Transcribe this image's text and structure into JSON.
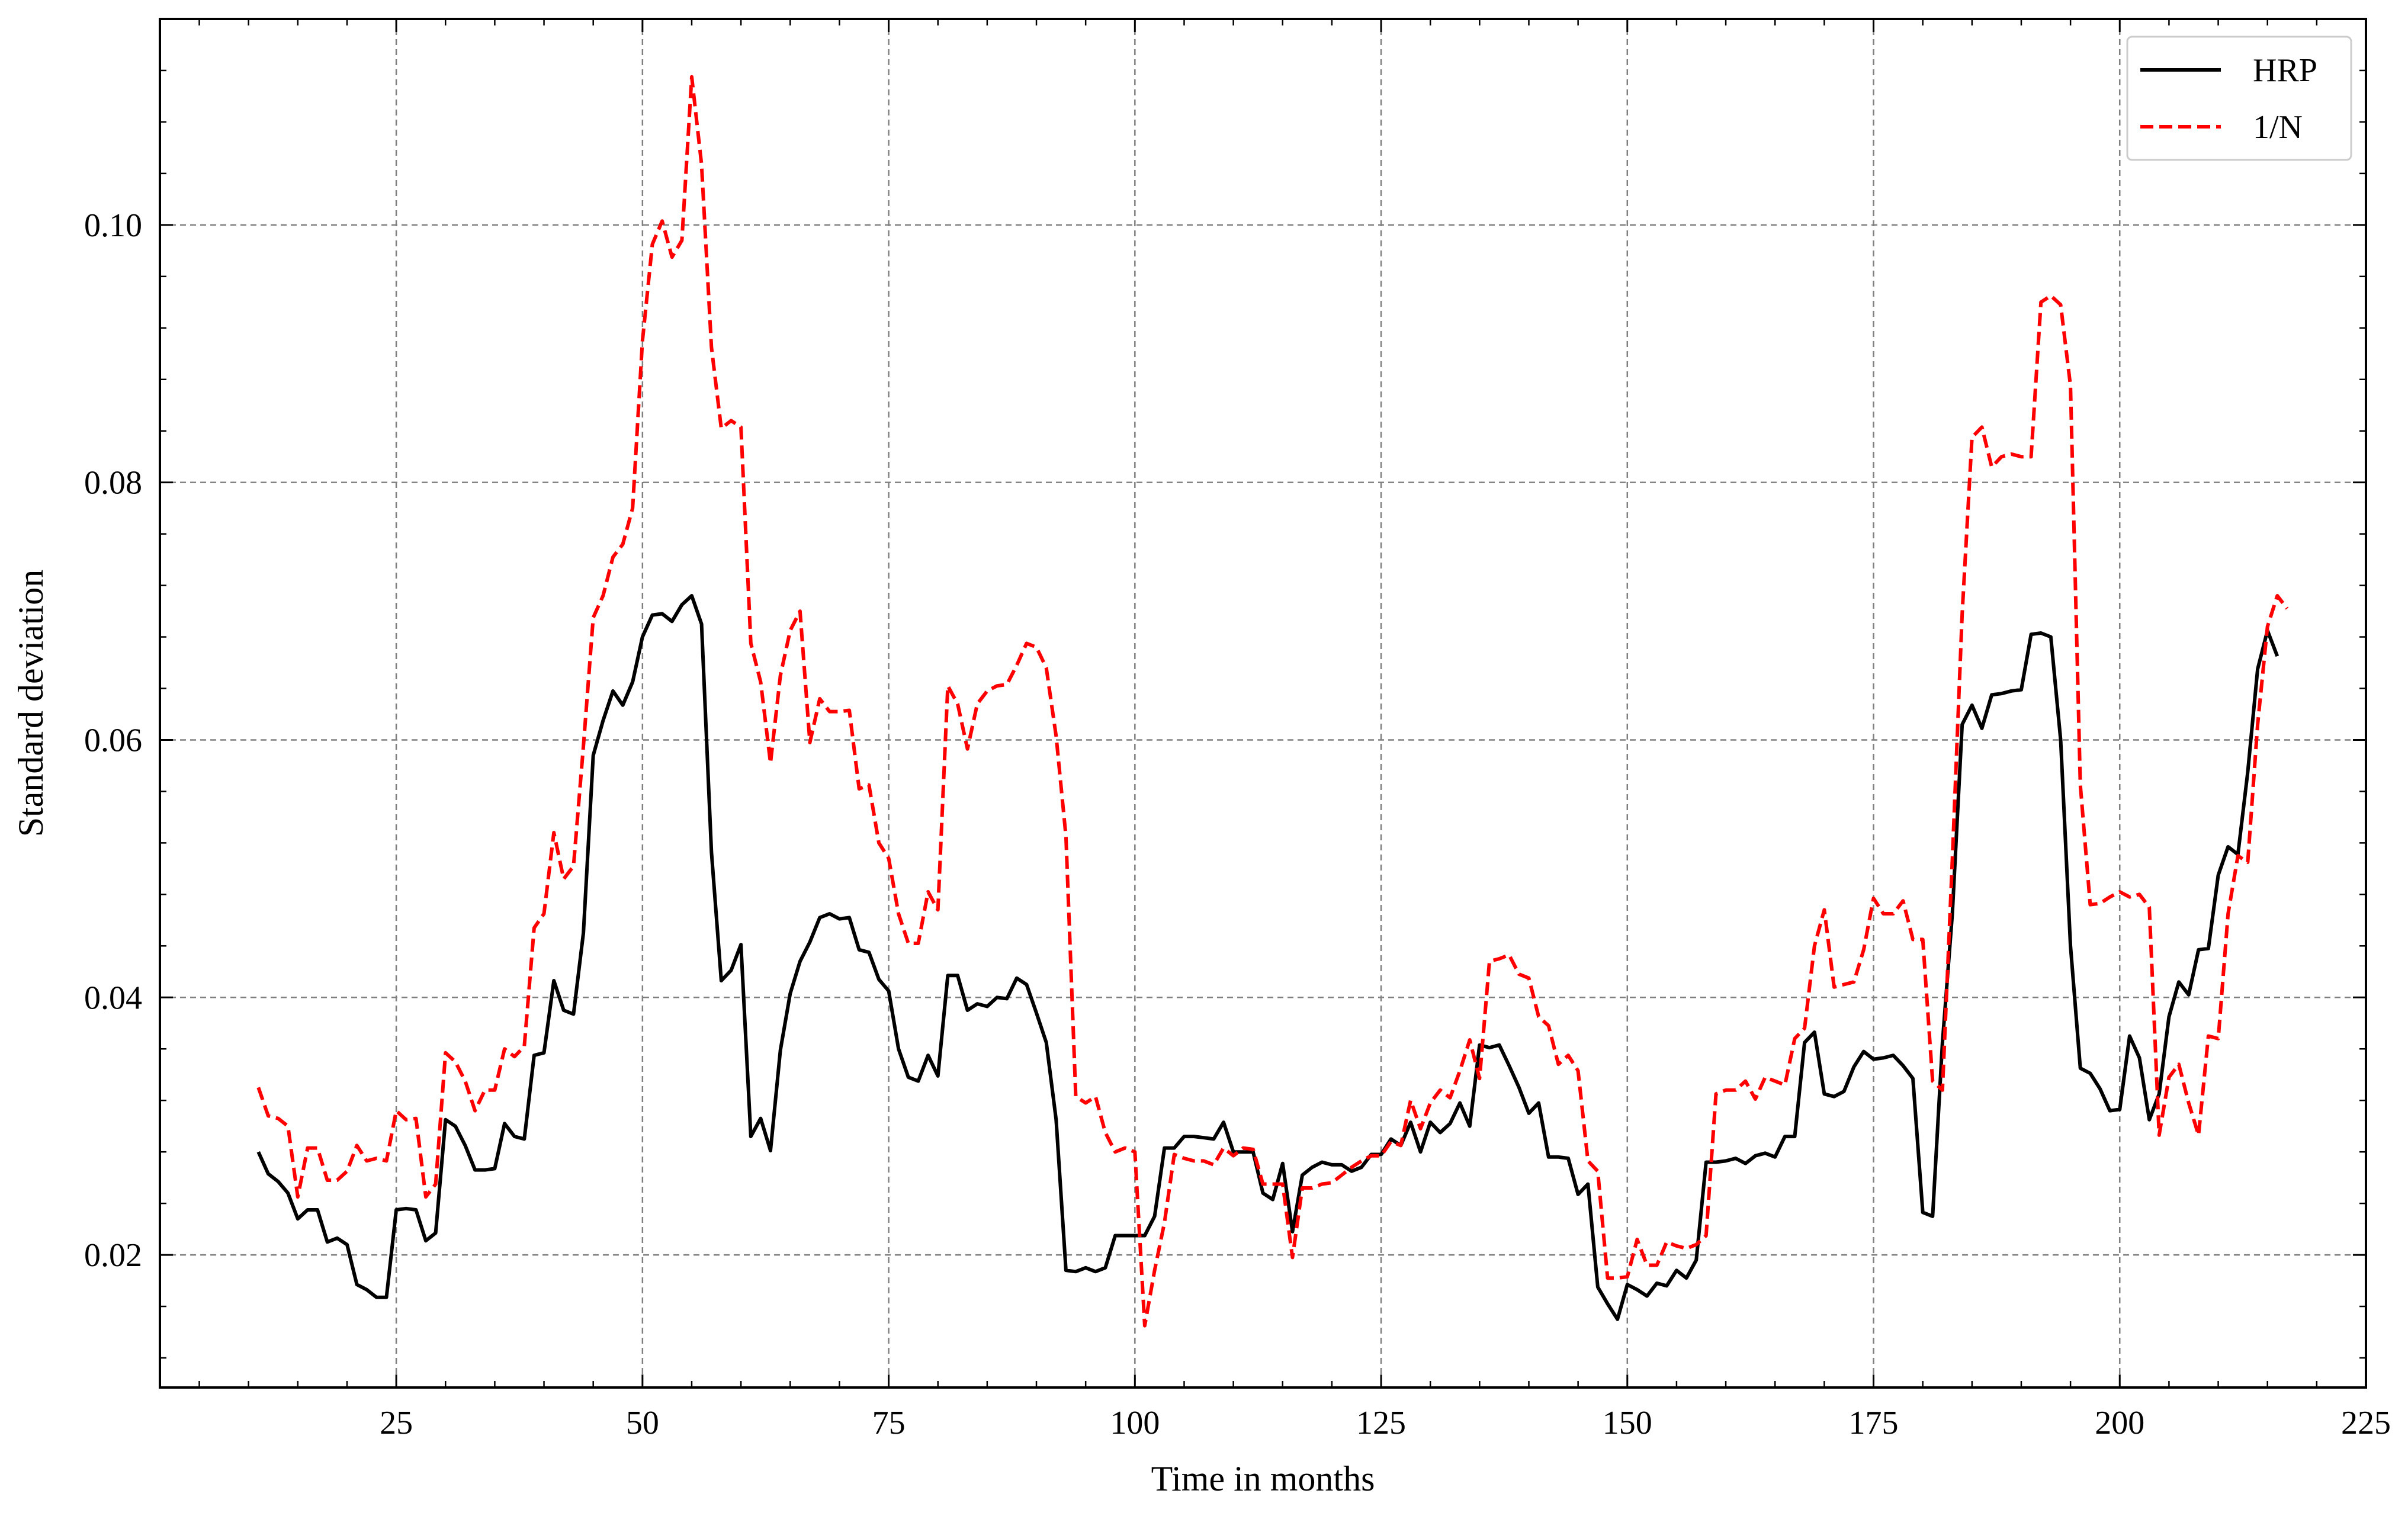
{
  "chart_data": {
    "type": "line",
    "title": "",
    "xlabel": "Time in months",
    "ylabel": "Standard deviation",
    "xlim": [
      1,
      225
    ],
    "ylim": [
      0.0097,
      0.116
    ],
    "xticks": [
      25,
      50,
      75,
      100,
      125,
      150,
      175,
      200,
      225
    ],
    "yticks": [
      0.02,
      0.04,
      0.06,
      0.08,
      0.1
    ],
    "xtick_labels": [
      "25",
      "50",
      "75",
      "100",
      "125",
      "150",
      "175",
      "200",
      "225"
    ],
    "ytick_labels": [
      "0.02",
      "0.04",
      "0.06",
      "0.08",
      "0.10"
    ],
    "grid": true,
    "legend_position": "top-right",
    "x_start": 11,
    "series": [
      {
        "name": "HRP",
        "color": "#000000",
        "style": "solid",
        "values": [
          0.028,
          0.0263,
          0.0257,
          0.0248,
          0.0228,
          0.0235,
          0.0235,
          0.021,
          0.0213,
          0.0208,
          0.0177,
          0.0173,
          0.0167,
          0.0167,
          0.0235,
          0.0236,
          0.0235,
          0.0211,
          0.0217,
          0.0305,
          0.03,
          0.0285,
          0.0266,
          0.0266,
          0.0267,
          0.0302,
          0.0292,
          0.029,
          0.0355,
          0.0357,
          0.0413,
          0.039,
          0.0387,
          0.045,
          0.0588,
          0.0615,
          0.0638,
          0.0627,
          0.0645,
          0.068,
          0.0697,
          0.0698,
          0.0692,
          0.0705,
          0.0712,
          0.069,
          0.0513,
          0.0413,
          0.0421,
          0.0441,
          0.0292,
          0.0306,
          0.0281,
          0.0359,
          0.0403,
          0.0428,
          0.0443,
          0.0462,
          0.0465,
          0.0461,
          0.0462,
          0.0437,
          0.0435,
          0.0414,
          0.0405,
          0.036,
          0.0338,
          0.0335,
          0.0355,
          0.0339,
          0.0417,
          0.0417,
          0.039,
          0.0395,
          0.0393,
          0.04,
          0.0399,
          0.0415,
          0.041,
          0.0388,
          0.0365,
          0.0305,
          0.0188,
          0.0187,
          0.019,
          0.0187,
          0.019,
          0.0215,
          0.0215,
          0.0215,
          0.0215,
          0.023,
          0.0283,
          0.0283,
          0.0292,
          0.0292,
          0.0291,
          0.029,
          0.0303,
          0.028,
          0.028,
          0.028,
          0.0248,
          0.0243,
          0.0271,
          0.0218,
          0.0262,
          0.0268,
          0.0272,
          0.027,
          0.027,
          0.0265,
          0.0268,
          0.0278,
          0.0278,
          0.029,
          0.0285,
          0.0303,
          0.028,
          0.0303,
          0.0295,
          0.0302,
          0.0318,
          0.03,
          0.0363,
          0.0361,
          0.0363,
          0.0347,
          0.033,
          0.031,
          0.0318,
          0.0276,
          0.0276,
          0.0275,
          0.0247,
          0.0255,
          0.0175,
          0.0162,
          0.015,
          0.0177,
          0.0173,
          0.0168,
          0.0178,
          0.0176,
          0.0188,
          0.0182,
          0.0196,
          0.0272,
          0.0272,
          0.0273,
          0.0275,
          0.0271,
          0.0277,
          0.0279,
          0.0276,
          0.0292,
          0.0292,
          0.0365,
          0.0373,
          0.0325,
          0.0323,
          0.0327,
          0.0346,
          0.0358,
          0.0352,
          0.0353,
          0.0355,
          0.0347,
          0.0337,
          0.0233,
          0.023,
          0.0365,
          0.0465,
          0.0612,
          0.0627,
          0.0609,
          0.0635,
          0.0636,
          0.0638,
          0.0639,
          0.0682,
          0.0683,
          0.068,
          0.06,
          0.044,
          0.0345,
          0.0341,
          0.0329,
          0.0312,
          0.0313,
          0.037,
          0.0353,
          0.0305,
          0.0325,
          0.0385,
          0.0412,
          0.0402,
          0.0437,
          0.0438,
          0.0495,
          0.0517,
          0.0511,
          0.0575,
          0.0655,
          0.0685,
          0.0665
        ]
      },
      {
        "name": "1/N",
        "color": "#ff0000",
        "style": "dashed",
        "values": [
          0.033,
          0.0308,
          0.0306,
          0.03,
          0.0245,
          0.0283,
          0.0283,
          0.0258,
          0.0258,
          0.0265,
          0.0285,
          0.0273,
          0.0275,
          0.0273,
          0.0312,
          0.0305,
          0.0306,
          0.0245,
          0.0255,
          0.0357,
          0.035,
          0.0335,
          0.0312,
          0.0328,
          0.0328,
          0.036,
          0.0354,
          0.0362,
          0.0454,
          0.0465,
          0.0528,
          0.0492,
          0.0502,
          0.0595,
          0.0695,
          0.0712,
          0.0742,
          0.0752,
          0.078,
          0.091,
          0.0985,
          0.1003,
          0.0975,
          0.0988,
          0.1115,
          0.1047,
          0.0905,
          0.0842,
          0.0848,
          0.0843,
          0.0675,
          0.0645,
          0.0582,
          0.065,
          0.0685,
          0.07,
          0.0598,
          0.0632,
          0.0622,
          0.0622,
          0.0623,
          0.0562,
          0.0565,
          0.052,
          0.0508,
          0.0465,
          0.0442,
          0.0442,
          0.0482,
          0.0468,
          0.0642,
          0.0628,
          0.0593,
          0.0628,
          0.0638,
          0.0642,
          0.0643,
          0.0658,
          0.0675,
          0.0672,
          0.0656,
          0.0603,
          0.0525,
          0.0323,
          0.0318,
          0.0323,
          0.0295,
          0.028,
          0.0283,
          0.028,
          0.0145,
          0.0188,
          0.0225,
          0.0278,
          0.0275,
          0.0273,
          0.0273,
          0.027,
          0.0283,
          0.0277,
          0.0283,
          0.0282,
          0.0255,
          0.0255,
          0.0255,
          0.0198,
          0.0252,
          0.0252,
          0.0255,
          0.0256,
          0.0262,
          0.0268,
          0.0273,
          0.0277,
          0.0277,
          0.0288,
          0.0285,
          0.032,
          0.0298,
          0.0318,
          0.0328,
          0.0322,
          0.0343,
          0.0367,
          0.0337,
          0.0428,
          0.043,
          0.0433,
          0.0418,
          0.0415,
          0.0385,
          0.0378,
          0.0348,
          0.0355,
          0.0343,
          0.0273,
          0.0265,
          0.0182,
          0.0182,
          0.0183,
          0.0212,
          0.0192,
          0.0192,
          0.021,
          0.0207,
          0.0205,
          0.0208,
          0.0215,
          0.0325,
          0.0328,
          0.0328,
          0.0335,
          0.0321,
          0.0338,
          0.0335,
          0.0332,
          0.0368,
          0.0376,
          0.044,
          0.0468,
          0.0408,
          0.041,
          0.0412,
          0.0437,
          0.0477,
          0.0465,
          0.0465,
          0.0475,
          0.0445,
          0.0445,
          0.0335,
          0.0328,
          0.0507,
          0.0698,
          0.0835,
          0.0843,
          0.0812,
          0.082,
          0.0822,
          0.082,
          0.082,
          0.094,
          0.0945,
          0.0938,
          0.0875,
          0.0565,
          0.0472,
          0.0473,
          0.0478,
          0.0482,
          0.0478,
          0.048,
          0.047,
          0.0293,
          0.0338,
          0.0348,
          0.0318,
          0.0293,
          0.037,
          0.0368,
          0.0465,
          0.051,
          0.0505,
          0.0612,
          0.0688,
          0.0712,
          0.0702
        ]
      }
    ]
  }
}
